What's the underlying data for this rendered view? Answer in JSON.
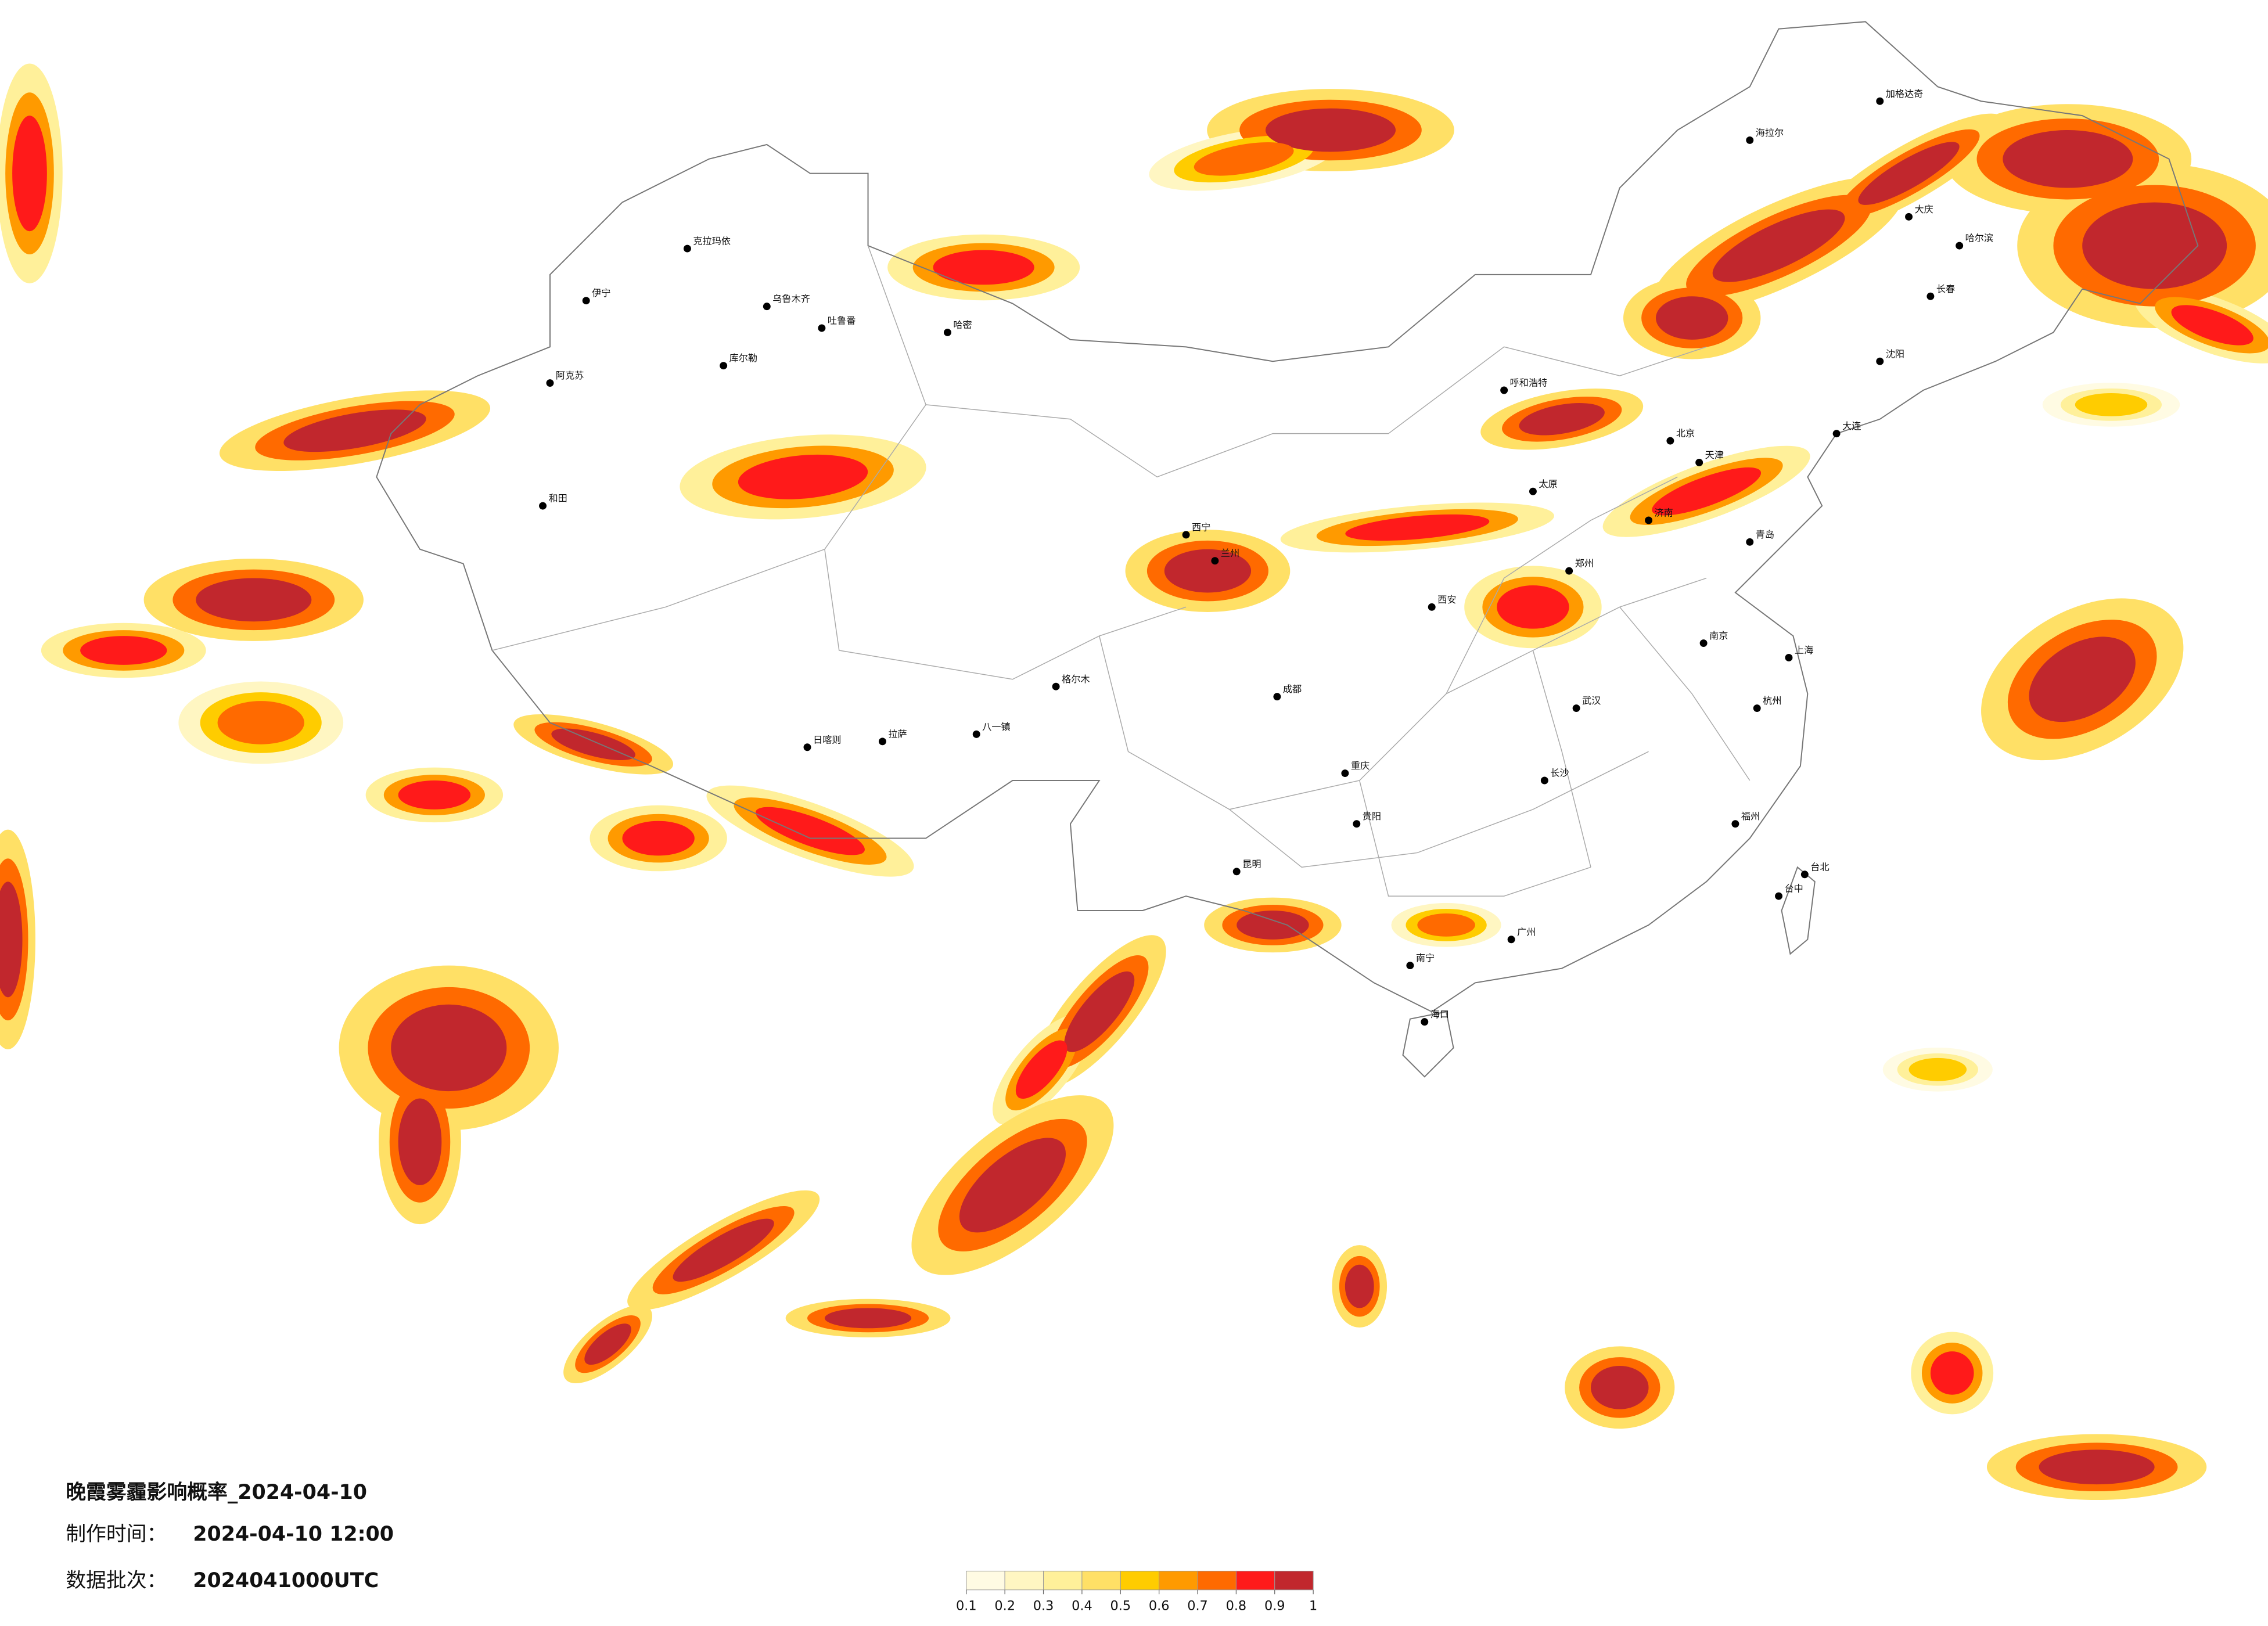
{
  "header": {
    "title": "晚霞雾霾影响概率_2024-04-10",
    "production_time_label": "制作时间：",
    "production_time": "2024-04-10 12:00",
    "batch_label": "数据批次：",
    "batch": "2024041000UTC"
  },
  "legend": {
    "colors": [
      "#fffbe3",
      "#fff6c2",
      "#fff09a",
      "#ffe066",
      "#ffcc00",
      "#ff9a00",
      "#ff6a00",
      "#ff1a1a",
      "#c1272d"
    ],
    "ticks": [
      0.1,
      0.2,
      0.3,
      0.4,
      0.5,
      0.6,
      0.7,
      0.8,
      0.9,
      1
    ]
  },
  "cities": [
    "克拉玛依",
    "伊宁",
    "乌鲁木齐",
    "吐鲁番",
    "哈密",
    "库尔勒",
    "阿克苏",
    "和田",
    "格尔木",
    "拉萨",
    "日喀则",
    "八一镇",
    "西宁",
    "兰州",
    "成都",
    "重庆",
    "贵阳",
    "昆明",
    "南宁",
    "海口",
    "广州",
    "福州",
    "台北",
    "台中",
    "杭州",
    "上海",
    "南京",
    "武汉",
    "长沙",
    "郑州",
    "西安",
    "北京",
    "天津",
    "济南",
    "太原",
    "呼和浩特",
    "哈尔滨",
    "长春",
    "沈阳",
    "大连",
    "青岛",
    "海拉尔",
    "加格达奇",
    "大庆"
  ]
}
